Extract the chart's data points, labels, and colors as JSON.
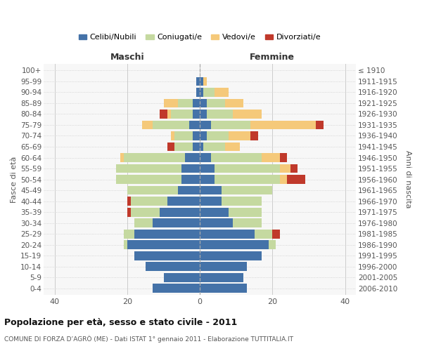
{
  "age_groups": [
    "100+",
    "95-99",
    "90-94",
    "85-89",
    "80-84",
    "75-79",
    "70-74",
    "65-69",
    "60-64",
    "55-59",
    "50-54",
    "45-49",
    "40-44",
    "35-39",
    "30-34",
    "25-29",
    "20-24",
    "15-19",
    "10-14",
    "5-9",
    "0-4"
  ],
  "birth_years": [
    "≤ 1910",
    "1911-1915",
    "1916-1920",
    "1921-1925",
    "1926-1930",
    "1931-1935",
    "1936-1940",
    "1941-1945",
    "1946-1950",
    "1951-1955",
    "1956-1960",
    "1961-1965",
    "1966-1970",
    "1971-1975",
    "1976-1980",
    "1981-1985",
    "1986-1990",
    "1991-1995",
    "1996-2000",
    "2001-2005",
    "2006-2010"
  ],
  "males": {
    "celibi": [
      0,
      1,
      1,
      2,
      2,
      3,
      2,
      2,
      4,
      5,
      5,
      6,
      9,
      11,
      13,
      18,
      20,
      18,
      15,
      10,
      13
    ],
    "coniugati": [
      0,
      0,
      0,
      4,
      6,
      10,
      5,
      5,
      17,
      18,
      18,
      14,
      10,
      8,
      5,
      3,
      1,
      0,
      0,
      0,
      0
    ],
    "vedovi": [
      0,
      0,
      0,
      4,
      1,
      3,
      1,
      0,
      1,
      0,
      0,
      0,
      0,
      0,
      0,
      0,
      0,
      0,
      0,
      0,
      0
    ],
    "divorziati": [
      0,
      0,
      0,
      0,
      2,
      0,
      0,
      2,
      0,
      0,
      0,
      0,
      1,
      1,
      0,
      0,
      0,
      0,
      0,
      0,
      0
    ]
  },
  "females": {
    "nubili": [
      0,
      1,
      1,
      2,
      2,
      3,
      2,
      1,
      3,
      4,
      4,
      6,
      6,
      8,
      9,
      15,
      19,
      17,
      13,
      12,
      13
    ],
    "coniugate": [
      0,
      0,
      3,
      5,
      7,
      11,
      6,
      6,
      14,
      18,
      18,
      14,
      11,
      9,
      8,
      5,
      2,
      0,
      0,
      0,
      0
    ],
    "vedove": [
      0,
      1,
      4,
      5,
      8,
      18,
      6,
      4,
      5,
      3,
      2,
      0,
      0,
      0,
      0,
      0,
      0,
      0,
      0,
      0,
      0
    ],
    "divorziate": [
      0,
      0,
      0,
      0,
      0,
      2,
      2,
      0,
      2,
      2,
      5,
      0,
      0,
      0,
      0,
      2,
      0,
      0,
      0,
      0,
      0
    ]
  },
  "colors": {
    "celibi_nubili": "#4472a8",
    "coniugati": "#c5d9a0",
    "vedovi": "#f5c97a",
    "divorziati": "#c0392b"
  },
  "xlim": [
    -43,
    43
  ],
  "xticks": [
    -40,
    -20,
    0,
    20,
    40
  ],
  "title": "Popolazione per età, sesso e stato civile - 2011",
  "subtitle": "COMUNE DI FORZA D’AGRÒ (ME) - Dati ISTAT 1° gennaio 2011 - Elaborazione TUTTITALIA.IT",
  "ylabel_left": "Fasce di età",
  "ylabel_right": "Anni di nascita",
  "xlabel_left": "Maschi",
  "xlabel_right": "Femmine",
  "bg_color": "#ffffff",
  "plot_bg_color": "#f7f7f7",
  "grid_color": "#cccccc"
}
